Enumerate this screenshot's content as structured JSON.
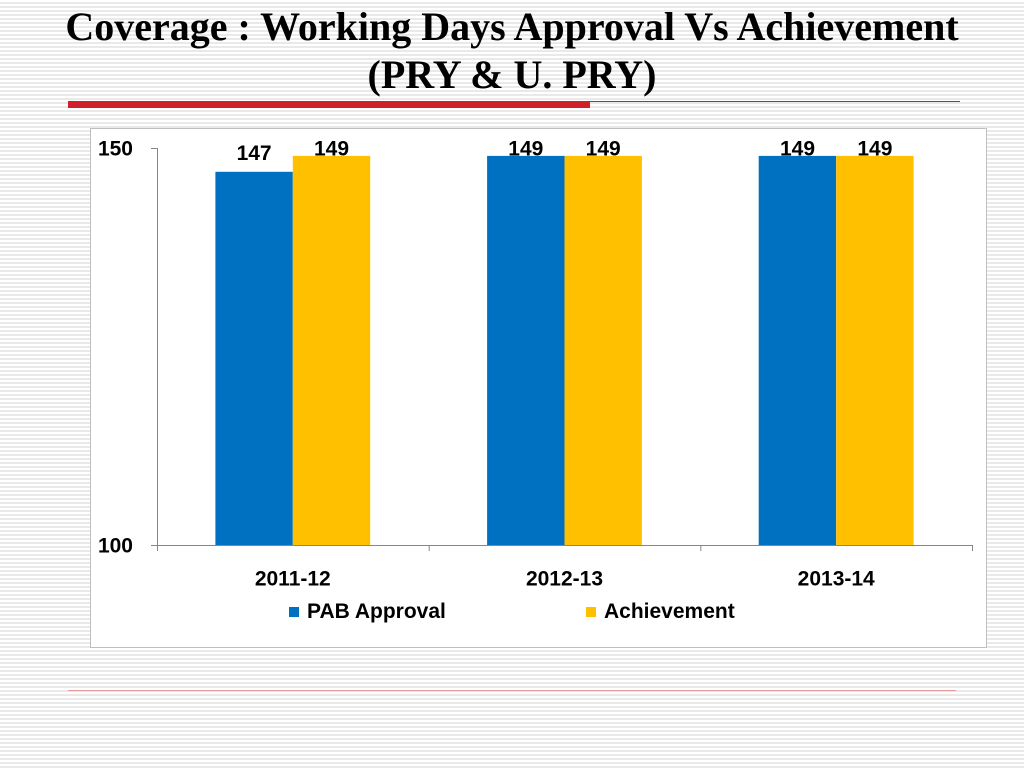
{
  "chart_data": {
    "type": "bar",
    "title": "Coverage : Working Days Approval Vs Achievement",
    "subtitle": "(PRY & U. PRY)",
    "categories": [
      "2011-12",
      "2012-13",
      "2013-14"
    ],
    "series": [
      {
        "name": "PAB Approval",
        "values": [
          147,
          149,
          149
        ],
        "color": "#0070C0"
      },
      {
        "name": "Achievement",
        "values": [
          149,
          149,
          149
        ],
        "color": "#FFC000"
      }
    ],
    "ylim": [
      100,
      150
    ],
    "yticks": [
      100,
      150
    ],
    "data_labels": true,
    "grid": false,
    "legend_position": "bottom"
  },
  "theme": {
    "title_rule_color": "#D0202A",
    "footer_rule_color": "#E39B9B",
    "axis_color": "#868686"
  }
}
